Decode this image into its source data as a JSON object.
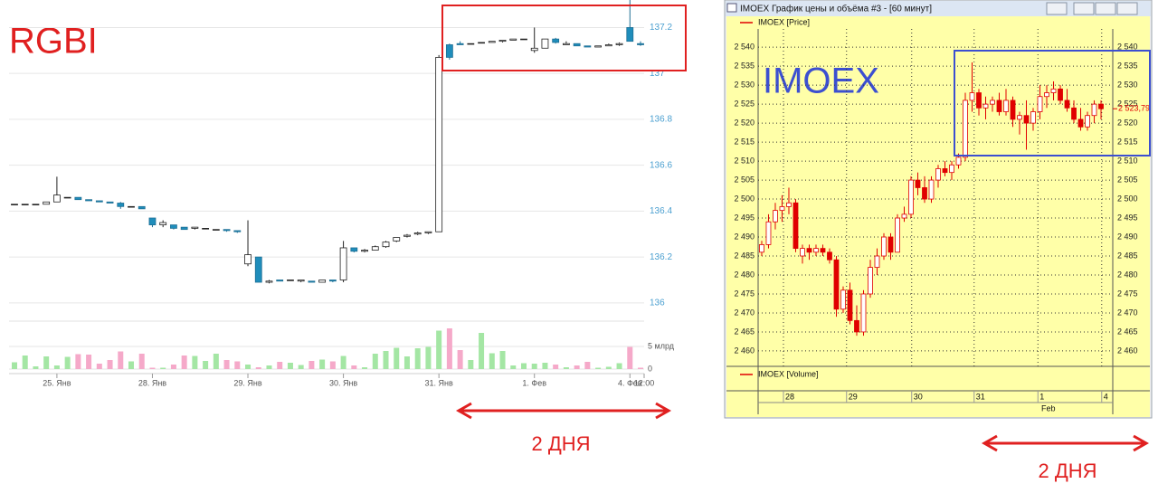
{
  "chart_data": [
    {
      "type": "candlestick",
      "title": "RGBI",
      "span_label": "2 ДНЯ",
      "up_fill": "#ffffff",
      "up_stroke": "#222222",
      "down_fill": "#1f8dbb",
      "down_stroke": "#1f6f94",
      "volume_up_color": "#a4e6a4",
      "volume_down_color": "#f5a9c9",
      "tick_color": "#4a9fd0",
      "grid": true,
      "xlim": [
        -0.51,
        59.34
      ],
      "xticks": [
        {
          "value": 4,
          "label": "25. Янв"
        },
        {
          "value": 13,
          "label": "28. Янв"
        },
        {
          "value": 22,
          "label": "29. Янв"
        },
        {
          "value": 31,
          "label": "30. Янв"
        },
        {
          "value": 40,
          "label": "31. Янв"
        },
        {
          "value": 49,
          "label": "1. Фев"
        },
        {
          "value": 58,
          "label": "4. Фев"
        },
        {
          "value": 59.34,
          "label": "12:00"
        }
      ],
      "ylim": [
        135.96,
        137.32
      ],
      "yticks": [
        136,
        136.2,
        136.4,
        136.6,
        136.8,
        137,
        137.2
      ],
      "volume_ylim": [
        0,
        9.6
      ],
      "volume_yticks": [
        0,
        {
          "value": 5,
          "label": "5 млрд"
        }
      ],
      "open": [
        136.43,
        136.43,
        136.43,
        136.43,
        136.44,
        136.46,
        136.46,
        136.45,
        136.445,
        136.44,
        136.435,
        136.42,
        136.42,
        136.37,
        136.34,
        136.34,
        136.33,
        136.325,
        136.325,
        136.32,
        136.32,
        136.315,
        136.17,
        136.2,
        136.09,
        136.1,
        136.1,
        136.095,
        136.095,
        136.09,
        136.1,
        136.1,
        136.24,
        136.225,
        136.23,
        136.245,
        136.27,
        136.29,
        136.3,
        136.305,
        136.31,
        137.125,
        137.13,
        137.13,
        137.135,
        137.135,
        137.14,
        137.145,
        137.15,
        137.1,
        137.11,
        137.15,
        137.125,
        137.13,
        137.12,
        137.115,
        137.12,
        137.125,
        137.2,
        137.13
      ],
      "high": [
        136.43,
        136.43,
        136.43,
        136.44,
        136.55,
        136.46,
        136.46,
        136.45,
        136.445,
        136.44,
        136.44,
        136.42,
        136.42,
        136.37,
        136.36,
        136.34,
        136.33,
        136.33,
        136.325,
        136.32,
        136.32,
        136.315,
        136.36,
        136.2,
        136.1,
        136.1,
        136.1,
        136.1,
        136.095,
        136.1,
        136.1,
        136.27,
        136.24,
        136.235,
        136.25,
        136.27,
        136.285,
        136.3,
        136.31,
        136.31,
        137.08,
        137.13,
        137.14,
        137.13,
        137.135,
        137.14,
        137.145,
        137.15,
        137.15,
        137.2,
        137.15,
        137.155,
        137.14,
        137.13,
        137.12,
        137.12,
        137.13,
        137.135,
        137.32,
        137.14
      ],
      "low": [
        136.43,
        136.43,
        136.43,
        136.43,
        136.44,
        136.46,
        136.45,
        136.445,
        136.44,
        136.435,
        136.41,
        136.42,
        136.41,
        136.33,
        136.33,
        136.32,
        136.32,
        136.32,
        136.325,
        136.32,
        136.31,
        136.305,
        136.16,
        136.09,
        136.085,
        136.095,
        136.1,
        136.09,
        136.09,
        136.09,
        136.09,
        136.09,
        136.22,
        136.22,
        136.23,
        136.24,
        136.265,
        136.285,
        136.295,
        136.3,
        136.31,
        137.06,
        137.125,
        137.13,
        137.135,
        137.135,
        137.135,
        137.145,
        137.15,
        137.09,
        137.11,
        137.13,
        137.125,
        137.12,
        137.115,
        137.115,
        137.12,
        137.12,
        137.14,
        137.12
      ],
      "close": [
        136.43,
        136.43,
        136.43,
        136.44,
        136.47,
        136.46,
        136.45,
        136.445,
        136.44,
        136.435,
        136.42,
        136.42,
        136.41,
        136.34,
        136.35,
        136.325,
        136.32,
        136.33,
        136.325,
        136.32,
        136.315,
        136.31,
        136.21,
        136.09,
        136.095,
        136.095,
        136.1,
        136.1,
        136.09,
        136.1,
        136.095,
        136.24,
        136.225,
        136.23,
        136.245,
        136.265,
        136.285,
        136.295,
        136.305,
        136.31,
        137.07,
        137.07,
        137.125,
        137.13,
        137.135,
        137.14,
        137.145,
        137.15,
        137.15,
        137.11,
        137.15,
        137.135,
        137.13,
        137.12,
        137.115,
        137.12,
        137.125,
        137.13,
        137.14,
        137.125
      ],
      "volume": [
        1.5,
        3.0,
        0.6,
        2.8,
        0.8,
        2.7,
        3.3,
        3.2,
        1.2,
        2.0,
        3.9,
        1.7,
        3.4,
        0.3,
        0.3,
        1.0,
        3.0,
        2.9,
        1.8,
        3.4,
        2.0,
        1.7,
        1.0,
        0.4,
        0.8,
        1.6,
        1.4,
        0.9,
        1.8,
        2.1,
        1.7,
        2.9,
        0.8,
        0.4,
        3.4,
        4.0,
        4.7,
        2.8,
        4.6,
        4.9,
        8.5,
        9.0,
        4.2,
        2.0,
        8.0,
        3.5,
        4.0,
        0.8,
        1.3,
        1.2,
        1.4,
        1.0,
        0.4,
        0.8,
        1.6,
        0.3,
        0.5,
        1.3,
        4.9,
        0.3
      ]
    },
    {
      "type": "candlestick",
      "title": "IMOEX График цены и объёма #3 - [60 минут]",
      "annotation": "IMOEX",
      "span_label": "2 ДНЯ",
      "price_legend": "IMOEX [Price]",
      "volume_legend": "IMOEX [Volume]",
      "x_sublabel": "Feb",
      "up_fill": "#ffffff",
      "up_stroke": "#e00000",
      "down_fill": "#e00000",
      "down_stroke": "#e00000",
      "tick_color": "#222222",
      "grid": true,
      "last_price": {
        "value": 2523.79,
        "label": "2 523,79"
      },
      "xlim": [
        -0.53,
        51.73
      ],
      "xticks": [
        {
          "value": 3.2,
          "label": "28"
        },
        {
          "value": 12.5,
          "label": "29"
        },
        {
          "value": 22.1,
          "label": "30"
        },
        {
          "value": 31.3,
          "label": "31"
        },
        {
          "value": 40.7,
          "label": "1"
        },
        {
          "value": 50.1,
          "label": "4"
        }
      ],
      "ylim": [
        2457.6,
        2542.9
      ],
      "yticks": [
        {
          "value": 2460,
          "label": "2 460"
        },
        {
          "value": 2465,
          "label": "2 465"
        },
        {
          "value": 2470,
          "label": "2 470"
        },
        {
          "value": 2475,
          "label": "2 475"
        },
        {
          "value": 2480,
          "label": "2 480"
        },
        {
          "value": 2485,
          "label": "2 485"
        },
        {
          "value": 2490,
          "label": "2 490"
        },
        {
          "value": 2495,
          "label": "2 495"
        },
        {
          "value": 2500,
          "label": "2 500"
        },
        {
          "value": 2505,
          "label": "2 505"
        },
        {
          "value": 2510,
          "label": "2 510"
        },
        {
          "value": 2515,
          "label": "2 515"
        },
        {
          "value": 2520,
          "label": "2 520"
        },
        {
          "value": 2525,
          "label": "2 525"
        },
        {
          "value": 2530,
          "label": "2 530"
        },
        {
          "value": 2535,
          "label": "2 535"
        },
        {
          "value": 2540,
          "label": "2 540"
        }
      ],
      "open": [
        2486,
        2488,
        2494,
        2497,
        2498,
        2499,
        2485,
        2487,
        2486,
        2487,
        2486,
        2484,
        2471,
        2476,
        2468,
        2465,
        2475,
        2482,
        2485,
        2490,
        2486,
        2495,
        2496,
        2505,
        2503,
        2500,
        2505,
        2508,
        2507,
        2509,
        2511,
        2526,
        2528,
        2524,
        2525,
        2526,
        2523,
        2526,
        2521,
        2522,
        2520,
        2523,
        2527,
        2528,
        2529,
        2526,
        2524,
        2521,
        2519,
        2522,
        2525
      ],
      "high": [
        2489,
        2496,
        2499,
        2501,
        2503,
        2500,
        2488,
        2488,
        2488,
        2488,
        2487,
        2485,
        2477,
        2478,
        2472,
        2476,
        2484,
        2487,
        2491,
        2491,
        2496,
        2498,
        2506,
        2507,
        2506,
        2506,
        2509,
        2510,
        2510,
        2512,
        2528,
        2536,
        2529,
        2527,
        2527,
        2528,
        2529,
        2527,
        2523,
        2526,
        2524,
        2530,
        2530,
        2531,
        2530,
        2529,
        2526,
        2524,
        2523,
        2526,
        2526
      ],
      "low": [
        2485,
        2487,
        2492,
        2494,
        2496,
        2486,
        2483,
        2484,
        2485,
        2485,
        2483,
        2469,
        2470,
        2467,
        2464,
        2464,
        2474,
        2480,
        2484,
        2484,
        2486,
        2494,
        2495,
        2501,
        2499,
        2499,
        2503,
        2506,
        2505,
        2508,
        2510,
        2523,
        2522,
        2521,
        2523,
        2522,
        2522,
        2519,
        2517,
        2513,
        2518,
        2521,
        2524,
        2526,
        2525,
        2523,
        2520,
        2518,
        2518,
        2520,
        2521
      ],
      "close": [
        2488,
        2494,
        2497,
        2498,
        2499,
        2487,
        2487,
        2486,
        2487,
        2486,
        2484,
        2471,
        2476,
        2468,
        2465,
        2475,
        2482,
        2485,
        2490,
        2486,
        2495,
        2496,
        2505,
        2503,
        2500,
        2505,
        2508,
        2507,
        2509,
        2511,
        2526,
        2528,
        2524,
        2525,
        2526,
        2523,
        2526,
        2521,
        2522,
        2520,
        2523,
        2527,
        2528,
        2529,
        2526,
        2524,
        2521,
        2519,
        2522,
        2525,
        2523.79
      ]
    }
  ]
}
